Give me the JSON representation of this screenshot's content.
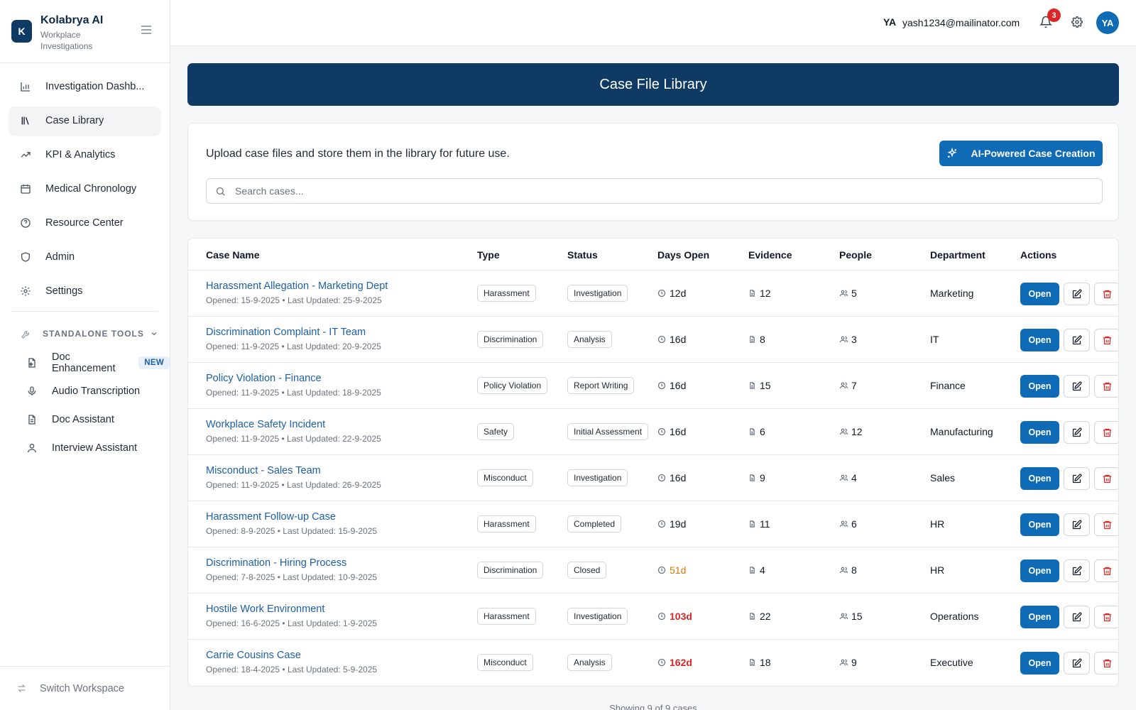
{
  "brand": {
    "logo_letter": "K",
    "name": "Kolabrya AI",
    "subtitle": "Workplace Investigations"
  },
  "nav": [
    {
      "label": "Investigation Dashb...",
      "icon": "bar-chart-icon",
      "active": false
    },
    {
      "label": "Case Library",
      "icon": "library-icon",
      "active": true
    },
    {
      "label": "KPI & Analytics",
      "icon": "trending-up-icon",
      "active": false
    },
    {
      "label": "Medical Chronology",
      "icon": "calendar-icon",
      "active": false
    },
    {
      "label": "Resource Center",
      "icon": "help-circle-icon",
      "active": false
    },
    {
      "label": "Admin",
      "icon": "shield-icon",
      "active": false
    },
    {
      "label": "Settings",
      "icon": "gear-icon",
      "active": false
    }
  ],
  "tools": {
    "heading": "STANDALONE TOOLS",
    "items": [
      {
        "label": "Doc Enhancement",
        "icon": "file-sparkle-icon",
        "badge": "NEW"
      },
      {
        "label": "Audio Transcription",
        "icon": "microphone-icon",
        "badge": ""
      },
      {
        "label": "Doc Assistant",
        "icon": "document-icon",
        "badge": ""
      },
      {
        "label": "Interview Assistant",
        "icon": "user-icon",
        "badge": ""
      }
    ]
  },
  "switch_workspace": "Switch Workspace",
  "header": {
    "user_initials": "YA",
    "user_email": "yash1234@mailinator.com",
    "notification_count": "3",
    "avatar_initials": "YA"
  },
  "banner_title": "Case File Library",
  "upload": {
    "description": "Upload case files and store them in the library for future use.",
    "ai_button": "AI-Powered Case Creation",
    "search_placeholder": "Search cases..."
  },
  "table": {
    "columns": [
      "Case Name",
      "Type",
      "Status",
      "Days Open",
      "Evidence",
      "People",
      "Department",
      "Actions"
    ],
    "open_label": "Open",
    "rows": [
      {
        "name": "Harassment Allegation - Marketing Dept",
        "meta": "Opened: 15-9-2025 • Last Updated: 25-9-2025",
        "type": "Harassment",
        "status": "Investigation",
        "days": "12d",
        "days_level": "normal",
        "evidence": "12",
        "people": "5",
        "department": "Marketing"
      },
      {
        "name": "Discrimination Complaint - IT Team",
        "meta": "Opened: 11-9-2025 • Last Updated: 20-9-2025",
        "type": "Discrimination",
        "status": "Analysis",
        "days": "16d",
        "days_level": "normal",
        "evidence": "8",
        "people": "3",
        "department": "IT"
      },
      {
        "name": "Policy Violation - Finance",
        "meta": "Opened: 11-9-2025 • Last Updated: 18-9-2025",
        "type": "Policy Violation",
        "status": "Report Writing",
        "days": "16d",
        "days_level": "normal",
        "evidence": "15",
        "people": "7",
        "department": "Finance"
      },
      {
        "name": "Workplace Safety Incident",
        "meta": "Opened: 11-9-2025 • Last Updated: 22-9-2025",
        "type": "Safety",
        "status": "Initial Assessment",
        "days": "16d",
        "days_level": "normal",
        "evidence": "6",
        "people": "12",
        "department": "Manufacturing"
      },
      {
        "name": "Misconduct - Sales Team",
        "meta": "Opened: 11-9-2025 • Last Updated: 26-9-2025",
        "type": "Misconduct",
        "status": "Investigation",
        "days": "16d",
        "days_level": "normal",
        "evidence": "9",
        "people": "4",
        "department": "Sales"
      },
      {
        "name": "Harassment Follow-up Case",
        "meta": "Opened: 8-9-2025 • Last Updated: 15-9-2025",
        "type": "Harassment",
        "status": "Completed",
        "days": "19d",
        "days_level": "normal",
        "evidence": "11",
        "people": "6",
        "department": "HR"
      },
      {
        "name": "Discrimination - Hiring Process",
        "meta": "Opened: 7-8-2025 • Last Updated: 10-9-2025",
        "type": "Discrimination",
        "status": "Closed",
        "days": "51d",
        "days_level": "warning",
        "evidence": "4",
        "people": "8",
        "department": "HR"
      },
      {
        "name": "Hostile Work Environment",
        "meta": "Opened: 16-6-2025 • Last Updated: 1-9-2025",
        "type": "Harassment",
        "status": "Investigation",
        "days": "103d",
        "days_level": "critical",
        "evidence": "22",
        "people": "15",
        "department": "Operations"
      },
      {
        "name": "Carrie Cousins Case",
        "meta": "Opened: 18-4-2025 • Last Updated: 5-9-2025",
        "type": "Misconduct",
        "status": "Analysis",
        "days": "162d",
        "days_level": "critical",
        "evidence": "18",
        "people": "9",
        "department": "Executive"
      }
    ]
  },
  "footer_count": "Showing 9 of 9 cases",
  "colors": {
    "primary": "#0f6bb5",
    "navy": "#0f3a63",
    "warning": "#d97706",
    "critical": "#dc2626",
    "danger": "#dc2626"
  }
}
